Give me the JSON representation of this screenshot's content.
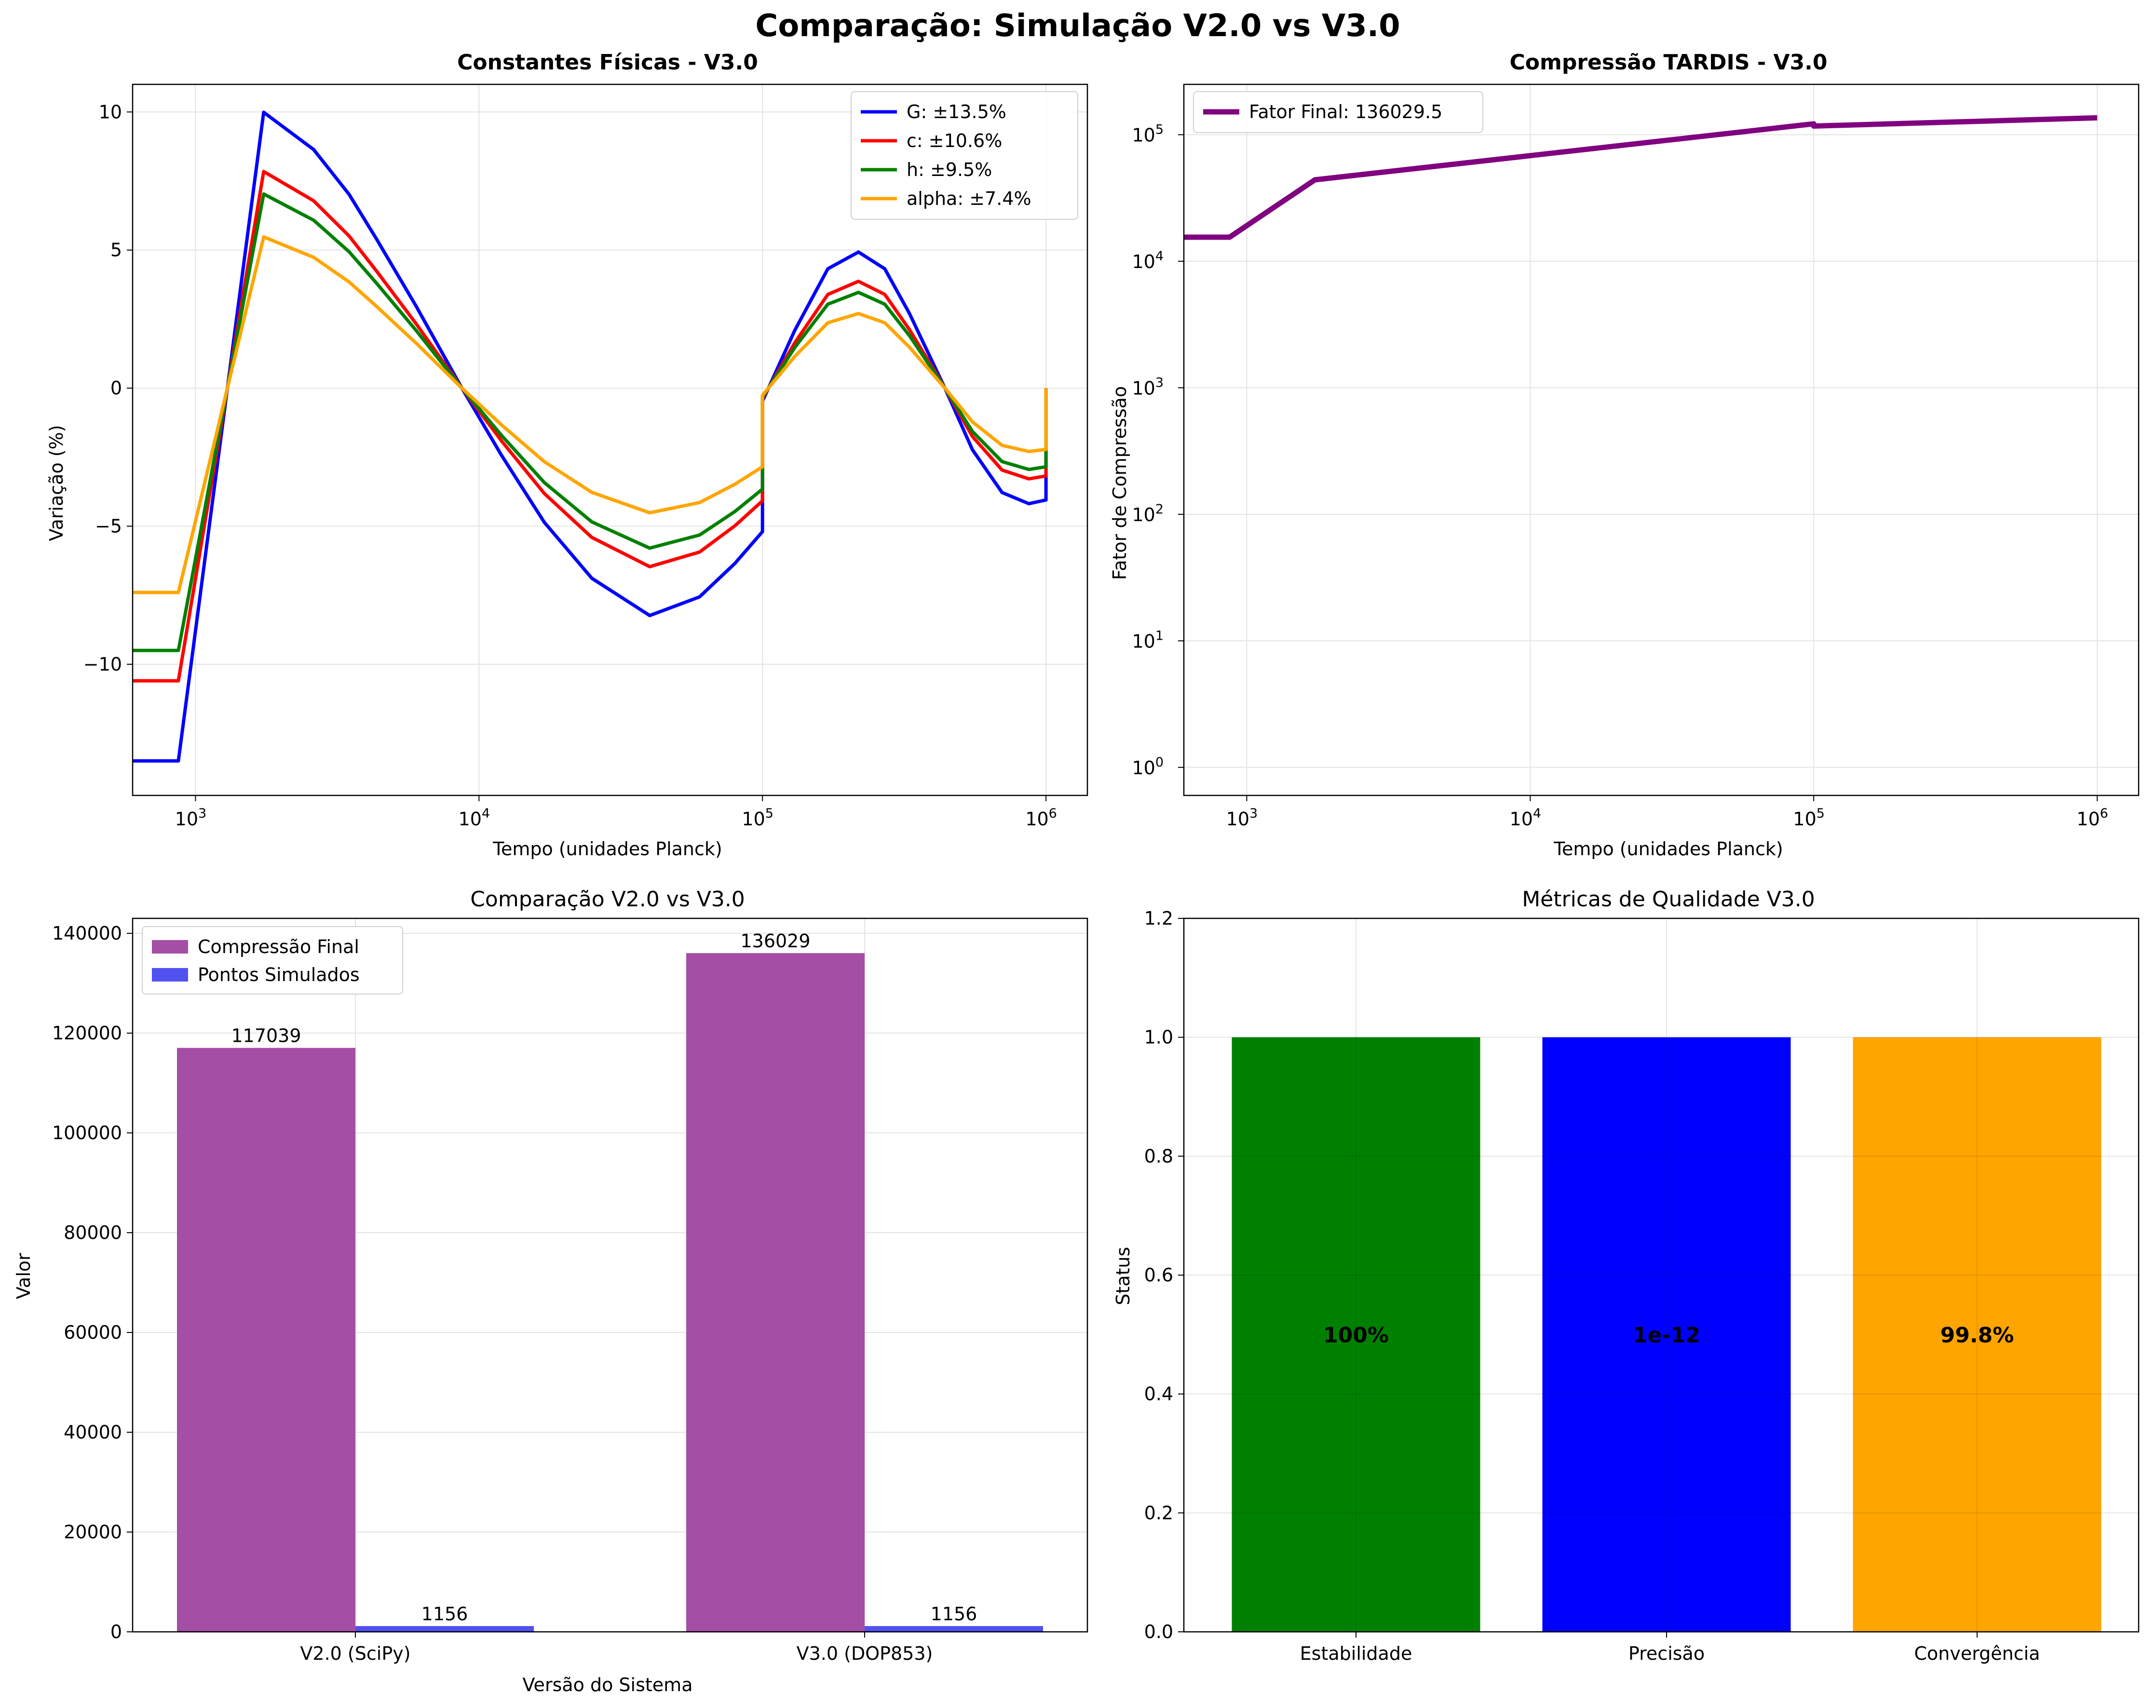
{
  "suptitle": "Comparação: Simulação V2.0 vs V3.0",
  "chart_data": [
    {
      "type": "line",
      "title": "Constantes Físicas - V3.0",
      "xlabel": "Tempo (unidades Planck)",
      "ylabel": "Variação (%)",
      "xscale": "log",
      "xlim": [
        600,
        1400000
      ],
      "ylim": [
        -14.75,
        11.0
      ],
      "xticks": [
        1000,
        10000,
        100000,
        1000000
      ],
      "xtick_labels": [
        "10",
        "10",
        "10",
        "10"
      ],
      "xtick_exponents": [
        "3",
        "4",
        "5",
        "6"
      ],
      "yticks": [
        -10,
        -5,
        0,
        5,
        10
      ],
      "ytick_labels": [
        "−10",
        "−5",
        "0",
        "5",
        "10"
      ],
      "grid": true,
      "legend": "upper right",
      "series": [
        {
          "name": "G: ±13.5%",
          "amplitude": 13.5,
          "color": "#0000ff"
        },
        {
          "name": "c: ±10.6%",
          "amplitude": 10.6,
          "color": "#ff0000"
        },
        {
          "name": "h: ±9.5%",
          "amplitude": 9.5,
          "color": "#008000"
        },
        {
          "name": "alpha: ±7.4%",
          "amplitude": 7.4,
          "color": "#ffa500"
        }
      ],
      "base_curve": {
        "x": [
          600,
          870,
          1740,
          2610,
          3480,
          4350,
          6000,
          8700,
          12000,
          17000,
          25000,
          40000,
          60000,
          80000,
          100000,
          100001,
          130000,
          170000,
          218000,
          270000,
          330000,
          440000,
          550000,
          700000,
          870000,
          1000000,
          1000001
        ],
        "y": [
          -1.0,
          -1.0,
          0.74,
          0.64,
          0.52,
          0.4,
          0.22,
          0.0,
          -0.18,
          -0.36,
          -0.51,
          -0.61,
          -0.56,
          -0.47,
          -0.385,
          -0.035,
          0.155,
          0.32,
          0.365,
          0.32,
          0.2,
          0.0,
          -0.165,
          -0.28,
          -0.31,
          -0.3,
          0.0
        ]
      }
    },
    {
      "type": "line",
      "title": "Compressão TARDIS - V3.0",
      "xlabel": "Tempo (unidades Planck)",
      "ylabel": "Fator de Compressão",
      "xscale": "log",
      "yscale": "log",
      "xlim": [
        600,
        1400000
      ],
      "ylim": [
        0.6,
        250000
      ],
      "xticks": [
        1000,
        10000,
        100000,
        1000000
      ],
      "xtick_labels": [
        "10",
        "10",
        "10",
        "10"
      ],
      "xtick_exponents": [
        "3",
        "4",
        "5",
        "6"
      ],
      "yticks": [
        1,
        10,
        100,
        1000,
        10000,
        100000
      ],
      "ytick_labels": [
        "10",
        "10",
        "10",
        "10",
        "10",
        "10"
      ],
      "ytick_exponents": [
        "0",
        "1",
        "2",
        "3",
        "4",
        "5"
      ],
      "grid": true,
      "legend": "upper left",
      "series": [
        {
          "name": "Fator Final: 136029.5",
          "color": "#800080",
          "x": [
            600,
            870,
            1740,
            100000,
            100001,
            1000000
          ],
          "y": [
            15500,
            15500,
            44000,
            122000,
            117000,
            136029.5
          ]
        }
      ]
    },
    {
      "type": "bar",
      "title": "Comparação V2.0 vs V3.0",
      "xlabel": "Versão do Sistema",
      "ylabel": "Valor",
      "categories": [
        "V2.0 (SciPy)",
        "V3.0 (DOP853)"
      ],
      "ylim": [
        0,
        143000
      ],
      "yticks": [
        0,
        20000,
        40000,
        60000,
        80000,
        100000,
        120000,
        140000
      ],
      "ytick_labels": [
        "0",
        "20000",
        "40000",
        "60000",
        "80000",
        "100000",
        "120000",
        "140000"
      ],
      "grid": true,
      "legend": "upper left",
      "series": [
        {
          "name": "Compressão Final",
          "color": "#a54ea5",
          "values": [
            117039,
            136029
          ],
          "labels": [
            "117039",
            "136029"
          ]
        },
        {
          "name": "Pontos Simulados",
          "color": "#5151f0",
          "values": [
            1156,
            1156
          ],
          "labels": [
            "1156",
            "1156"
          ]
        }
      ]
    },
    {
      "type": "bar",
      "title": "Métricas de Qualidade V3.0",
      "xlabel": "",
      "ylabel": "Status",
      "categories": [
        "Estabilidade",
        "Precisão",
        "Convergência"
      ],
      "values": [
        1.0,
        1.0,
        1.0
      ],
      "colors": [
        "#008000",
        "#0000ff",
        "#ffa500"
      ],
      "bar_labels": [
        "100%",
        "1e-12",
        "99.8%"
      ],
      "ylim": [
        0,
        1.2
      ],
      "yticks": [
        0,
        0.2,
        0.4,
        0.6,
        0.8,
        1.0,
        1.2
      ],
      "ytick_labels": [
        "0.0",
        "0.2",
        "0.4",
        "0.6",
        "0.8",
        "1.0",
        "1.2"
      ],
      "grid": true
    }
  ]
}
